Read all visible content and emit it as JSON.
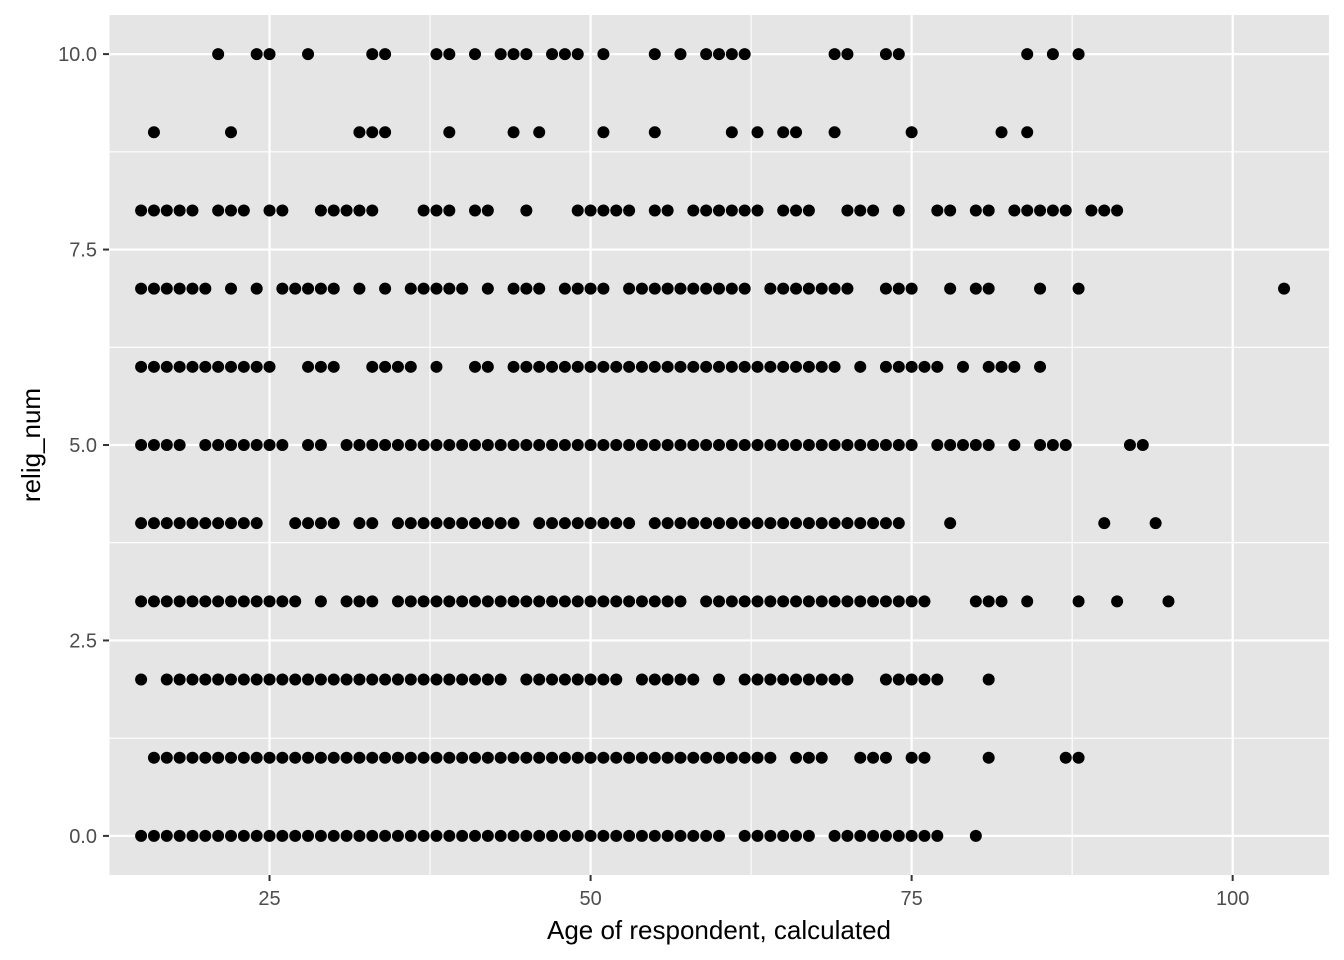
{
  "chart_data": {
    "type": "scatter",
    "xlabel": "Age of respondent, calculated",
    "ylabel": "relig_num",
    "xlim": [
      12.5,
      107.5
    ],
    "ylim": [
      -0.5,
      10.5
    ],
    "x_ticks": [
      {
        "value": 25,
        "label": "25"
      },
      {
        "value": 50,
        "label": "50"
      },
      {
        "value": 75,
        "label": "75"
      },
      {
        "value": 100,
        "label": "100"
      }
    ],
    "y_ticks": [
      {
        "value": 0,
        "label": "0.0"
      },
      {
        "value": 2.5,
        "label": "2.5"
      },
      {
        "value": 5,
        "label": "5.0"
      },
      {
        "value": 7.5,
        "label": "7.5"
      },
      {
        "value": 10,
        "label": "10.0"
      }
    ],
    "grid": true,
    "colors": {
      "panel": "#e5e5e5",
      "grid": "#ffffff",
      "point": "#000000"
    },
    "rows": [
      {
        "y": 10,
        "x": [
          21,
          24,
          25,
          28,
          33,
          34,
          38,
          39,
          41,
          43,
          44,
          45,
          47,
          48,
          49,
          51,
          55,
          57,
          59,
          60,
          61,
          62,
          69,
          70,
          73,
          74,
          84,
          86,
          88
        ]
      },
      {
        "y": 9,
        "x": [
          16,
          22,
          32,
          33,
          34,
          39,
          44,
          46,
          51,
          55,
          61,
          63,
          65,
          66,
          69,
          75,
          82,
          84
        ]
      },
      {
        "y": 8,
        "x": [
          15,
          16,
          17,
          18,
          19,
          21,
          22,
          23,
          25,
          26,
          29,
          30,
          31,
          32,
          33,
          37,
          38,
          39,
          41,
          42,
          45,
          49,
          50,
          51,
          52,
          53,
          55,
          56,
          58,
          59,
          60,
          61,
          62,
          63,
          65,
          66,
          67,
          70,
          71,
          72,
          74,
          77,
          78,
          80,
          81,
          83,
          84,
          85,
          86,
          87,
          89,
          90,
          91
        ]
      },
      {
        "y": 7,
        "x": [
          15,
          16,
          17,
          18,
          19,
          20,
          22,
          24,
          26,
          27,
          28,
          29,
          30,
          32,
          34,
          36,
          37,
          38,
          39,
          40,
          42,
          44,
          45,
          46,
          48,
          49,
          50,
          51,
          53,
          54,
          55,
          56,
          57,
          58,
          59,
          60,
          61,
          62,
          64,
          65,
          66,
          67,
          68,
          69,
          70,
          73,
          74,
          75,
          78,
          80,
          81,
          85,
          88,
          104
        ]
      },
      {
        "y": 6,
        "x": [
          15,
          16,
          17,
          18,
          19,
          20,
          21,
          22,
          23,
          24,
          25,
          28,
          29,
          30,
          33,
          34,
          35,
          36,
          38,
          41,
          42,
          44,
          45,
          46,
          47,
          48,
          49,
          50,
          51,
          52,
          53,
          54,
          55,
          56,
          57,
          58,
          59,
          60,
          61,
          62,
          63,
          64,
          65,
          66,
          67,
          68,
          69,
          71,
          73,
          74,
          75,
          76,
          77,
          79,
          81,
          82,
          83,
          85
        ]
      },
      {
        "y": 5,
        "x": [
          15,
          16,
          17,
          18,
          20,
          21,
          22,
          23,
          24,
          25,
          26,
          28,
          29,
          31,
          32,
          33,
          34,
          35,
          36,
          37,
          38,
          39,
          40,
          41,
          42,
          43,
          44,
          45,
          46,
          47,
          48,
          49,
          50,
          51,
          52,
          53,
          54,
          55,
          56,
          57,
          58,
          59,
          60,
          61,
          62,
          63,
          64,
          65,
          66,
          67,
          68,
          69,
          70,
          71,
          72,
          73,
          74,
          75,
          77,
          78,
          79,
          80,
          81,
          83,
          85,
          86,
          87,
          92,
          93
        ]
      },
      {
        "y": 4,
        "x": [
          15,
          16,
          17,
          18,
          19,
          20,
          21,
          22,
          23,
          24,
          27,
          28,
          29,
          30,
          32,
          33,
          35,
          36,
          37,
          38,
          39,
          40,
          41,
          42,
          43,
          44,
          46,
          47,
          48,
          49,
          50,
          51,
          52,
          53,
          55,
          56,
          57,
          58,
          59,
          60,
          61,
          62,
          63,
          64,
          65,
          66,
          67,
          68,
          69,
          70,
          71,
          72,
          73,
          74,
          78,
          90,
          94
        ]
      },
      {
        "y": 3,
        "x": [
          15,
          16,
          17,
          18,
          19,
          20,
          21,
          22,
          23,
          24,
          25,
          26,
          27,
          29,
          31,
          32,
          33,
          35,
          36,
          37,
          38,
          39,
          40,
          41,
          42,
          43,
          44,
          45,
          46,
          47,
          48,
          49,
          50,
          51,
          52,
          53,
          54,
          55,
          56,
          57,
          59,
          60,
          61,
          62,
          63,
          64,
          65,
          66,
          67,
          68,
          69,
          70,
          71,
          72,
          73,
          74,
          75,
          76,
          80,
          81,
          82,
          84,
          88,
          91,
          95
        ]
      },
      {
        "y": 2,
        "x": [
          15,
          17,
          18,
          19,
          20,
          21,
          22,
          23,
          24,
          25,
          26,
          27,
          28,
          29,
          30,
          31,
          32,
          33,
          34,
          35,
          36,
          37,
          38,
          39,
          40,
          41,
          42,
          43,
          45,
          46,
          47,
          48,
          49,
          50,
          51,
          52,
          54,
          55,
          56,
          57,
          58,
          60,
          62,
          63,
          64,
          65,
          66,
          67,
          68,
          69,
          70,
          73,
          74,
          75,
          76,
          77,
          81
        ]
      },
      {
        "y": 1,
        "x": [
          16,
          17,
          18,
          19,
          20,
          21,
          22,
          23,
          24,
          25,
          26,
          27,
          28,
          29,
          30,
          31,
          32,
          33,
          34,
          35,
          36,
          37,
          38,
          39,
          40,
          41,
          42,
          43,
          44,
          45,
          46,
          47,
          48,
          49,
          50,
          51,
          52,
          53,
          54,
          55,
          56,
          57,
          58,
          59,
          60,
          61,
          62,
          63,
          64,
          66,
          67,
          68,
          71,
          72,
          73,
          75,
          76,
          81,
          87,
          88
        ]
      },
      {
        "y": 0,
        "x": [
          15,
          16,
          17,
          18,
          19,
          20,
          21,
          22,
          23,
          24,
          25,
          26,
          27,
          28,
          29,
          30,
          31,
          32,
          33,
          34,
          35,
          36,
          37,
          38,
          39,
          40,
          41,
          42,
          43,
          44,
          45,
          46,
          47,
          48,
          49,
          50,
          51,
          52,
          53,
          54,
          55,
          56,
          57,
          58,
          59,
          60,
          62,
          63,
          64,
          65,
          66,
          67,
          69,
          70,
          71,
          72,
          73,
          74,
          75,
          76,
          77,
          80
        ]
      }
    ]
  }
}
